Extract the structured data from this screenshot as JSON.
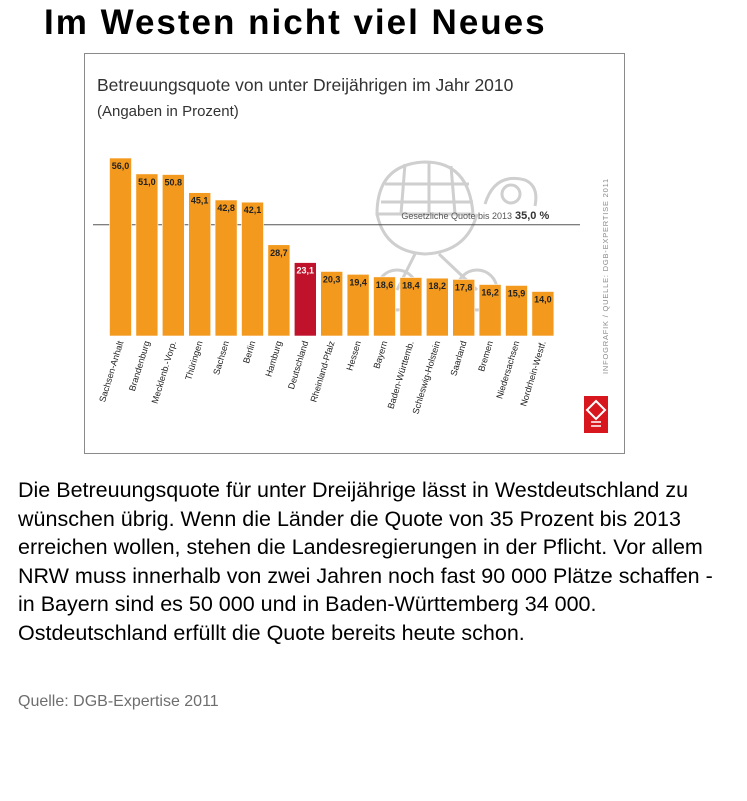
{
  "headline": "Im Westen nicht viel Neues",
  "chart_data": {
    "type": "bar",
    "title": "Betreuungsquote von unter Dreijährigen im Jahr 2010",
    "subtitle": "(Angaben in Prozent)",
    "categories": [
      "Sachsen-Anhalt",
      "Brandenburg",
      "Mecklenb.-Vorp.",
      "Thüringen",
      "Sachsen",
      "Berlin",
      "Hamburg",
      "Deutschland",
      "Rheinland-Pfalz",
      "Hessen",
      "Bayern",
      "Baden-Württemb.",
      "Schleswig-Holstein",
      "Saarland",
      "Bremen",
      "Niedersachsen",
      "Nordrhein-Westf."
    ],
    "values": [
      56.0,
      51.0,
      50.8,
      45.1,
      42.8,
      42.1,
      28.7,
      23.1,
      20.3,
      19.4,
      18.6,
      18.4,
      18.2,
      17.8,
      16.2,
      15.9,
      14.0
    ],
    "value_labels": [
      "56,0",
      "51,0",
      "50.8",
      "45,1",
      "42,8",
      "42,1",
      "28,7",
      "23,1",
      "20,3",
      "19,4",
      "18,6",
      "18,4",
      "18,2",
      "17,8",
      "16,2",
      "15,9",
      "14,0"
    ],
    "highlight_category": "Deutschland",
    "reference_line": {
      "value": 35.0,
      "label": "Gesetzliche Quote bis 2013",
      "value_label": "35,0 %"
    },
    "ylim": [
      0,
      60
    ],
    "grid": false,
    "legend": "none",
    "colors": {
      "bar": "#f39a1e",
      "highlight": "#c0122a",
      "bar_edge": "#ffffff",
      "reference": "#555555",
      "title": "#333333"
    },
    "side_credit": "INFOGRAFIK / QUELLE: DGB-EXPERTISE 2011",
    "logo_icon": "ig-metall-logo"
  },
  "body_text": "Die Betreuungsquote für unter Dreijährige lässt in Westdeutschland zu wünschen übrig. Wenn die Länder die Quote von 35 Prozent bis 2013 erreichen wollen, stehen die Landesregierungen in der Pflicht. Vor allem NRW muss innerhalb von zwei Jahren noch fast 90 000 Plätze schaffen - in Bayern sind es 50 000 und in Baden-Württemberg 34 000. Ostdeutschland erfüllt die Quote bereits heute schon.",
  "source": "Quelle: DGB-Expertise 2011"
}
